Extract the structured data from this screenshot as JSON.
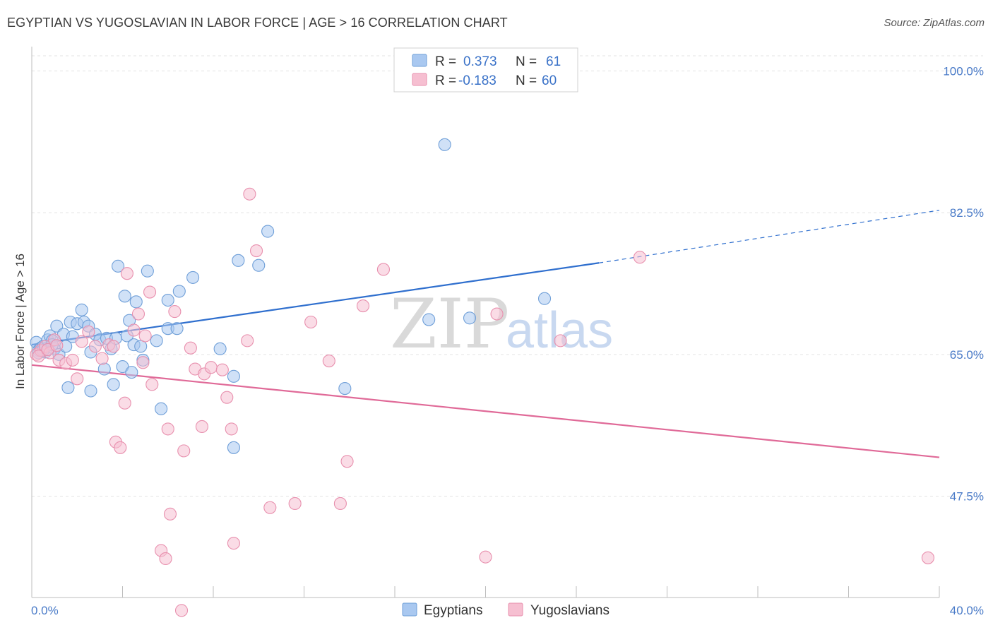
{
  "title": "EGYPTIAN VS YUGOSLAVIAN IN LABOR FORCE | AGE > 16 CORRELATION CHART",
  "source": "Source: ZipAtlas.com",
  "watermark": {
    "zip": "ZIP",
    "atlas": "atlas"
  },
  "colors": {
    "blue_fill": "#a9c8f0",
    "blue_stroke": "#6f9fd8",
    "blue_line": "#2f6fce",
    "pink_fill": "#f6bfd1",
    "pink_stroke": "#e890ae",
    "pink_line": "#e06a98",
    "tick_text": "#4a7bc8"
  },
  "legend": {
    "rows": [
      {
        "r_label": "R = ",
        "r_value": "0.373",
        "n_label": "N = ",
        "n_value": "61"
      },
      {
        "r_label": "R = ",
        "r_value": "-0.183",
        "n_label": "N = ",
        "n_value": "60"
      }
    ]
  },
  "chart_data": {
    "type": "scatter",
    "xlabel": "",
    "ylabel": "In Labor Force | Age > 16",
    "xlim": [
      0,
      40
    ],
    "ylim": [
      35,
      103
    ],
    "x_tick_labels": [
      "0.0%",
      "40.0%"
    ],
    "y_ticks": [
      47.5,
      65.0,
      82.5,
      100.0
    ],
    "y_tick_labels": [
      "47.5%",
      "65.0%",
      "82.5%",
      "100.0%"
    ],
    "grid": true,
    "legend_position": "top-center",
    "series": [
      {
        "name": "Egyptians",
        "color": "#a9c8f0",
        "trend": {
          "x_start": 0,
          "y_start": 66.2,
          "x_solid_end": 25,
          "y_solid_end": 76.3,
          "x_end": 40,
          "y_end": 82.8
        },
        "points": [
          [
            0.2,
            66.5
          ],
          [
            0.3,
            65.5
          ],
          [
            0.4,
            65.8
          ],
          [
            0.5,
            66.0
          ],
          [
            0.6,
            65.3
          ],
          [
            0.7,
            66.8
          ],
          [
            0.8,
            67.3
          ],
          [
            0.9,
            66.7
          ],
          [
            1.0,
            65.7
          ],
          [
            1.1,
            68.5
          ],
          [
            1.2,
            65.0
          ],
          [
            1.4,
            67.5
          ],
          [
            1.5,
            66.0
          ],
          [
            1.7,
            69.0
          ],
          [
            1.8,
            67.2
          ],
          [
            2.0,
            68.8
          ],
          [
            2.2,
            70.5
          ],
          [
            2.3,
            69.0
          ],
          [
            2.5,
            68.5
          ],
          [
            2.6,
            65.3
          ],
          [
            2.8,
            67.5
          ],
          [
            3.0,
            66.8
          ],
          [
            3.2,
            63.2
          ],
          [
            3.3,
            67.0
          ],
          [
            3.5,
            65.7
          ],
          [
            3.6,
            61.3
          ],
          [
            3.7,
            67.0
          ],
          [
            3.8,
            75.9
          ],
          [
            4.0,
            63.5
          ],
          [
            4.1,
            72.2
          ],
          [
            4.2,
            67.3
          ],
          [
            4.3,
            69.2
          ],
          [
            4.4,
            62.8
          ],
          [
            4.5,
            66.2
          ],
          [
            4.6,
            71.5
          ],
          [
            4.8,
            66.0
          ],
          [
            4.9,
            64.3
          ],
          [
            5.1,
            75.3
          ],
          [
            5.5,
            66.7
          ],
          [
            5.7,
            58.3
          ],
          [
            6.0,
            68.2
          ],
          [
            6.0,
            71.7
          ],
          [
            6.4,
            68.2
          ],
          [
            6.5,
            72.8
          ],
          [
            7.1,
            74.5
          ],
          [
            8.3,
            65.7
          ],
          [
            8.9,
            62.3
          ],
          [
            8.9,
            53.5
          ],
          [
            9.1,
            76.6
          ],
          [
            10.0,
            76.0
          ],
          [
            10.4,
            80.2
          ],
          [
            13.8,
            60.8
          ],
          [
            17.5,
            69.3
          ],
          [
            18.2,
            90.9
          ],
          [
            19.3,
            69.5
          ],
          [
            22.6,
            71.9
          ],
          [
            1.6,
            60.9
          ],
          [
            2.6,
            60.5
          ],
          [
            0.3,
            65.2
          ],
          [
            0.5,
            65.5
          ],
          [
            0.9,
            66.2
          ]
        ]
      },
      {
        "name": "Yugoslavians",
        "color": "#f6bfd1",
        "trend": {
          "x_start": 0,
          "y_start": 63.7,
          "x_end": 40,
          "y_end": 52.3
        },
        "points": [
          [
            0.2,
            65.0
          ],
          [
            0.4,
            65.5
          ],
          [
            0.6,
            66.0
          ],
          [
            0.8,
            65.2
          ],
          [
            1.0,
            66.8
          ],
          [
            1.2,
            64.3
          ],
          [
            1.5,
            63.9
          ],
          [
            1.8,
            64.3
          ],
          [
            2.0,
            62.0
          ],
          [
            2.2,
            66.6
          ],
          [
            2.5,
            67.8
          ],
          [
            2.8,
            66.0
          ],
          [
            3.1,
            64.5
          ],
          [
            3.4,
            66.2
          ],
          [
            3.6,
            66.0
          ],
          [
            3.7,
            54.2
          ],
          [
            3.9,
            53.5
          ],
          [
            4.1,
            59.0
          ],
          [
            4.2,
            75.0
          ],
          [
            4.5,
            68.0
          ],
          [
            4.7,
            70.0
          ],
          [
            4.9,
            64.0
          ],
          [
            5.0,
            67.3
          ],
          [
            5.2,
            72.7
          ],
          [
            5.3,
            61.3
          ],
          [
            5.7,
            40.8
          ],
          [
            5.9,
            39.8
          ],
          [
            6.0,
            55.8
          ],
          [
            6.1,
            45.3
          ],
          [
            6.3,
            70.3
          ],
          [
            6.6,
            33.4
          ],
          [
            6.7,
            53.1
          ],
          [
            7.0,
            65.8
          ],
          [
            7.2,
            63.2
          ],
          [
            7.5,
            56.1
          ],
          [
            7.6,
            62.6
          ],
          [
            7.9,
            63.4
          ],
          [
            8.4,
            63.1
          ],
          [
            8.6,
            59.7
          ],
          [
            8.8,
            55.8
          ],
          [
            8.9,
            41.7
          ],
          [
            9.5,
            66.7
          ],
          [
            9.6,
            84.8
          ],
          [
            9.9,
            77.8
          ],
          [
            10.5,
            46.1
          ],
          [
            11.6,
            46.6
          ],
          [
            12.3,
            69.0
          ],
          [
            13.1,
            64.2
          ],
          [
            13.6,
            46.6
          ],
          [
            13.9,
            51.8
          ],
          [
            14.6,
            71.0
          ],
          [
            15.5,
            75.5
          ],
          [
            20.0,
            40.0
          ],
          [
            20.5,
            70.0
          ],
          [
            23.3,
            66.7
          ],
          [
            26.8,
            77.0
          ],
          [
            39.5,
            39.9
          ],
          [
            0.3,
            64.8
          ],
          [
            0.7,
            65.6
          ],
          [
            1.1,
            66.1
          ]
        ]
      }
    ]
  },
  "bottom_legend": {
    "items": [
      "Egyptians",
      "Yugoslavians"
    ]
  }
}
